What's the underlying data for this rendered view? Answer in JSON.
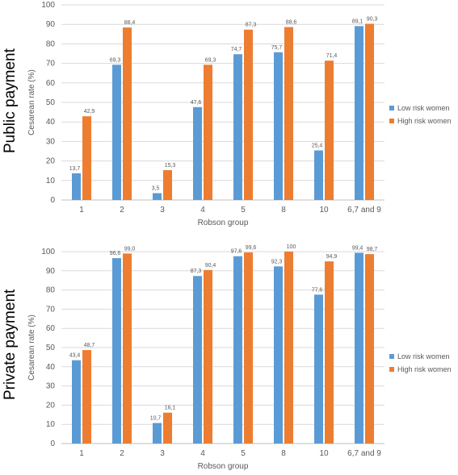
{
  "colors": {
    "low": "#5B9BD5",
    "high": "#ED7D31",
    "grid": "#d9d9d9",
    "axis": "#bfbfbf",
    "text": "#595959"
  },
  "chart_data": [
    {
      "type": "bar",
      "panel_title": "Public payment",
      "ylabel": "Cesarean rate (%)",
      "xlabel": "Robson group",
      "ylim": [
        0,
        100
      ],
      "yticks": [
        "0",
        "10",
        "20",
        "30",
        "40",
        "50",
        "60",
        "70",
        "80",
        "90",
        "100"
      ],
      "categories": [
        "1",
        "2",
        "3",
        "4",
        "5",
        "8",
        "10",
        "6,7 and 9"
      ],
      "grid": true,
      "legend_position": "right",
      "series": [
        {
          "name": "Low risk women",
          "values": [
            13.7,
            69.3,
            3.5,
            47.6,
            74.7,
            75.7,
            25.4,
            89.1
          ],
          "labels": [
            "13,7",
            "69,3",
            "3,5",
            "47,6",
            "74,7",
            "75,7",
            "25,4",
            "89,1"
          ]
        },
        {
          "name": "High risk women",
          "values": [
            42.9,
            88.4,
            15.3,
            69.3,
            87.3,
            88.6,
            71.4,
            90.3
          ],
          "labels": [
            "42,9",
            "88,4",
            "15,3",
            "69,3",
            "87,3",
            "88,6",
            "71,4",
            "90,3"
          ]
        }
      ]
    },
    {
      "type": "bar",
      "panel_title": "Private payment",
      "ylabel": "Cesarean rate (%)",
      "xlabel": "Robson group",
      "ylim": [
        0,
        100
      ],
      "yticks": [
        "0",
        "10",
        "20",
        "30",
        "40",
        "50",
        "60",
        "70",
        "80",
        "90",
        "100"
      ],
      "categories": [
        "1",
        "2",
        "3",
        "4",
        "5",
        "8",
        "10",
        "6,7 and 9"
      ],
      "grid": true,
      "legend_position": "right",
      "series": [
        {
          "name": "Low risk women",
          "values": [
            43.4,
            96.6,
            10.7,
            87.3,
            97.6,
            92.3,
            77.6,
            99.4
          ],
          "labels": [
            "43,4",
            "96,6",
            "10,7",
            "87,3",
            "97,6",
            "92,3",
            "77,6",
            "99,4"
          ]
        },
        {
          "name": "High risk women",
          "values": [
            48.7,
            99.0,
            16.1,
            90.4,
            99.6,
            100,
            94.9,
            98.7
          ],
          "labels": [
            "48,7",
            "99,0",
            "16,1",
            "90,4",
            "99,6",
            "100",
            "94,9",
            "98,7"
          ]
        }
      ]
    }
  ]
}
